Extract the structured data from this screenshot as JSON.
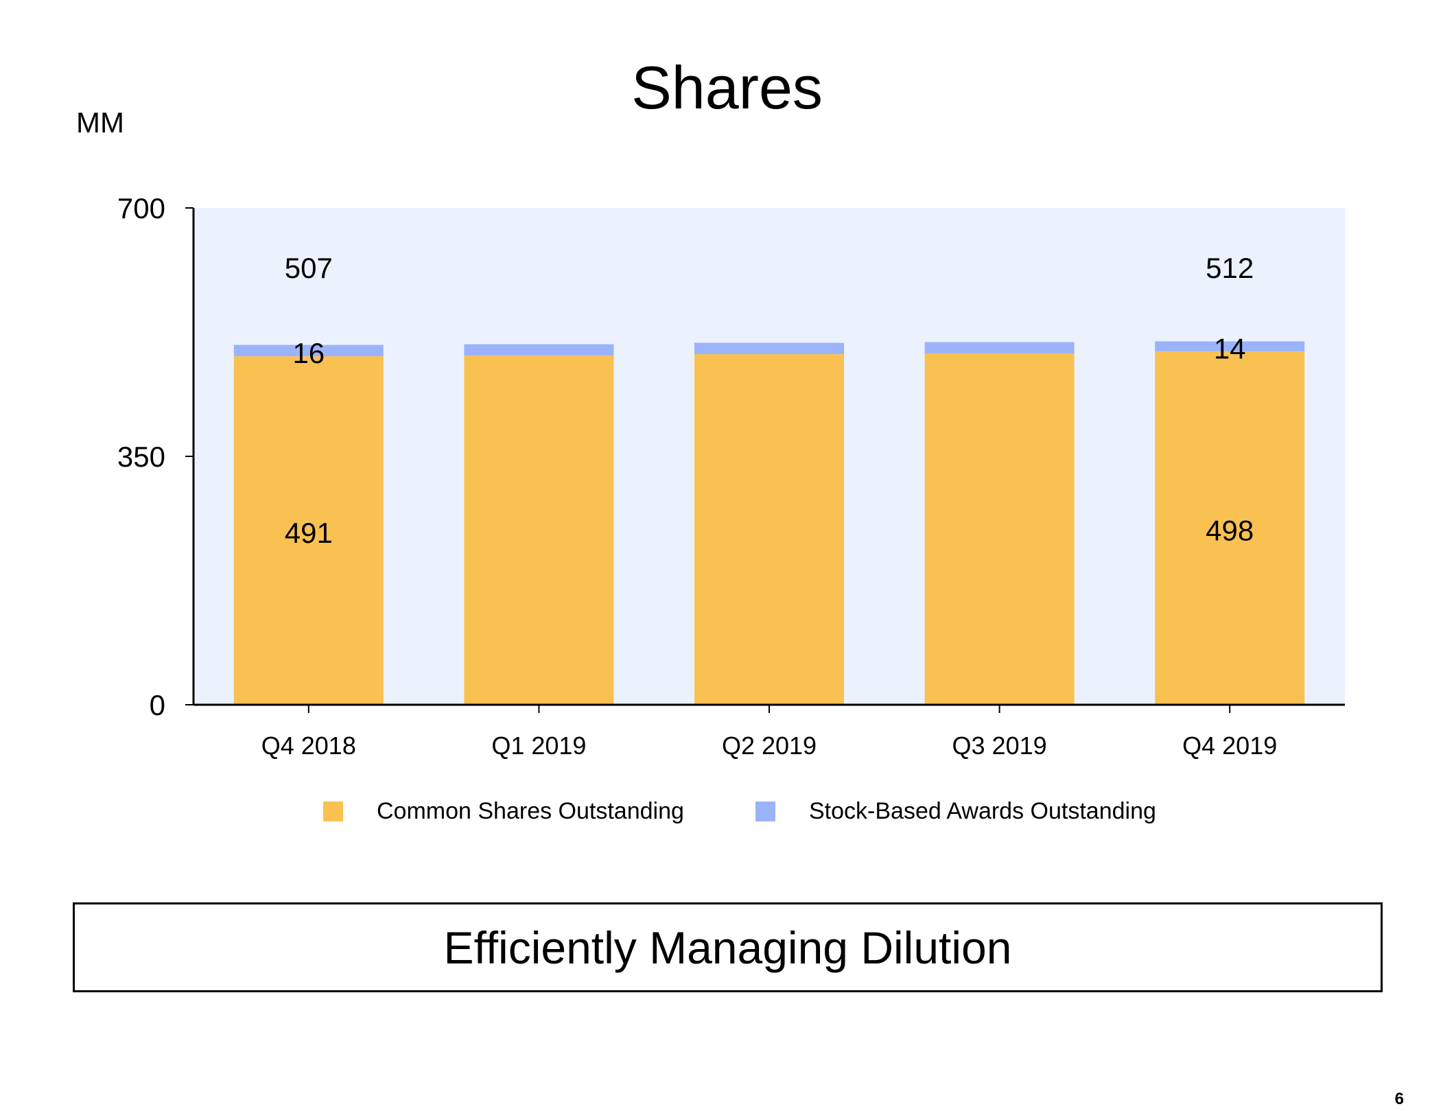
{
  "slide": {
    "title": "Shares",
    "unit_label": "MM",
    "callout": "Efficiently Managing Dilution",
    "page_number": "6"
  },
  "colors": {
    "common": "#F9C152",
    "awards": "#9BB3F9",
    "plot_background": "#EBF2FE",
    "axis": "#000000"
  },
  "chart_data": {
    "type": "bar",
    "stacked": true,
    "categories": [
      "Q4 2018",
      "Q1 2019",
      "Q2 2019",
      "Q3 2019",
      "Q4 2019"
    ],
    "series": [
      {
        "name": "Common Shares Outstanding",
        "values": [
          491,
          492,
          494,
          495,
          498
        ]
      },
      {
        "name": "Stock-Based Awards Outstanding",
        "values": [
          16,
          16,
          16,
          16,
          14
        ]
      }
    ],
    "ylim": [
      0,
      700
    ],
    "yticks": [
      0,
      350,
      700
    ],
    "data_labels": [
      {
        "category": "Q4 2018",
        "series": "Common Shares Outstanding",
        "text": "491"
      },
      {
        "category": "Q4 2018",
        "series": "Stock-Based Awards Outstanding",
        "text": "16"
      },
      {
        "category": "Q4 2018",
        "series": "total",
        "text": "507"
      },
      {
        "category": "Q4 2019",
        "series": "Common Shares Outstanding",
        "text": "498"
      },
      {
        "category": "Q4 2019",
        "series": "Stock-Based Awards Outstanding",
        "text": "14"
      },
      {
        "category": "Q4 2019",
        "series": "total",
        "text": "512"
      }
    ],
    "legend": "bottom",
    "grid": false
  }
}
